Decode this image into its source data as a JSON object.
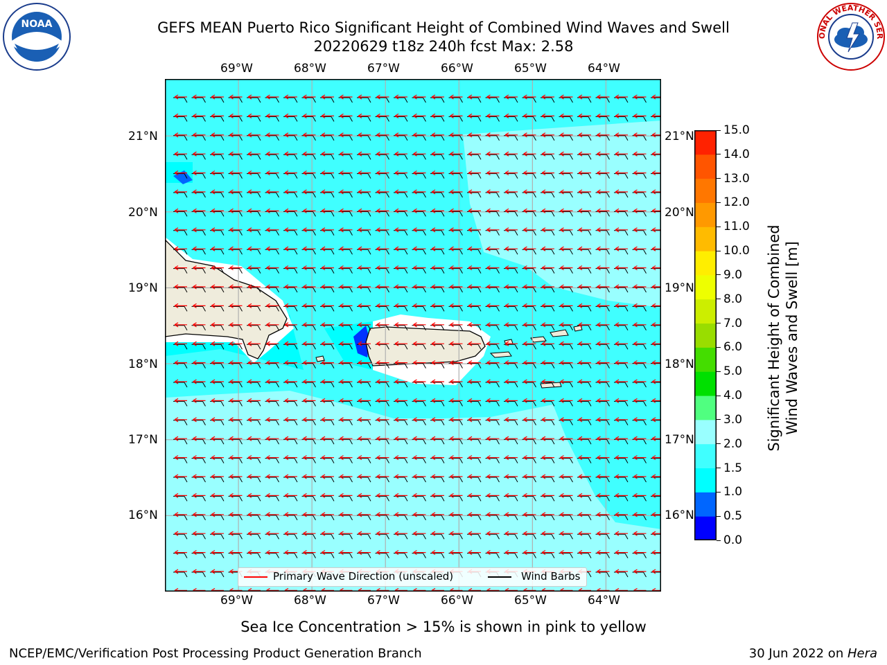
{
  "title": {
    "line1": "GEFS MEAN Puerto Rico Significant Height of Combined Wind Waves and Swell",
    "line2": "20220629 t18z 240h fcst   Max: 2.58"
  },
  "logos": {
    "left": {
      "icon": "noaa-logo-icon",
      "text": "NOAA"
    },
    "right": {
      "icon": "nws-logo-icon",
      "text": "NATIONAL WEATHER SERVICE"
    }
  },
  "map": {
    "lon_ticks_top": [
      "69°W",
      "68°W",
      "67°W",
      "66°W",
      "65°W",
      "64°W"
    ],
    "lon_ticks_bottom": [
      "69°W",
      "68°W",
      "67°W",
      "66°W",
      "65°W",
      "64°W"
    ],
    "lat_ticks_left": [
      "21°N",
      "20°N",
      "19°N",
      "18°N",
      "17°N",
      "16°N"
    ],
    "lat_ticks_right": [
      "21°N",
      "20°N",
      "19°N",
      "18°N",
      "17°N",
      "16°N"
    ],
    "extent_lon": [
      -70.0,
      -63.25
    ],
    "extent_lat": [
      15.0,
      21.75
    ],
    "land_color": "#efecdc",
    "ocean_colors": {
      "cyan": "#00ffff",
      "light_cyan": "#40ffff",
      "pale": "#99ffff",
      "blue": "#0099ff",
      "dark_blue": "#0033ff"
    },
    "legend": {
      "wave_label": "Primary Wave Direction (unscaled)",
      "barb_label": "Wind Barbs",
      "wave_color": "#ff0000",
      "barb_color": "#000000"
    }
  },
  "colorbar": {
    "label_line1": "Significant Height of Combined",
    "label_line2": "Wind Waves and Swell [m]",
    "ticks": [
      "0.0",
      "0.5",
      "1.0",
      "1.5",
      "2.0",
      "3.0",
      "4.0",
      "5.0",
      "6.0",
      "7.0",
      "8.0",
      "9.0",
      "10.0",
      "11.0",
      "12.0",
      "13.0",
      "14.0",
      "15.0"
    ],
    "colors": [
      "#0000ff",
      "#0066ff",
      "#00ffff",
      "#40ffff",
      "#99ffff",
      "#50ff80",
      "#00e000",
      "#44dd00",
      "#99dd00",
      "#ccee00",
      "#eeff00",
      "#ffee00",
      "#ffbb00",
      "#ff9900",
      "#ff7700",
      "#ff5500",
      "#ff2200",
      "#ff0000"
    ]
  },
  "chart_data": {
    "type": "heatmap",
    "title": "GEFS MEAN Puerto Rico Significant Height of Combined Wind Waves and Swell",
    "subtitle": "20220629 t18z 240h fcst   Max: 2.58",
    "variable_label": "Significant Height of Combined Wind Waves and Swell [m]",
    "max_value": 2.58,
    "levels": [
      0.0,
      0.5,
      1.0,
      1.5,
      2.0,
      3.0,
      4.0,
      5.0,
      6.0,
      7.0,
      8.0,
      9.0,
      10.0,
      11.0,
      12.0,
      13.0,
      14.0,
      15.0
    ],
    "lon_range": [
      -70.0,
      -63.25
    ],
    "lat_range": [
      15.0,
      21.75
    ],
    "wave_direction": "westward (from east)",
    "wind_barbs": "easterly"
  },
  "note": "Sea Ice Concentration > 15% is shown in pink to yellow",
  "footer": {
    "left": "NCEP/EMC/Verification Post Processing Product Generation Branch",
    "right_date": "30 Jun 2022 on ",
    "right_host": "Hera"
  }
}
